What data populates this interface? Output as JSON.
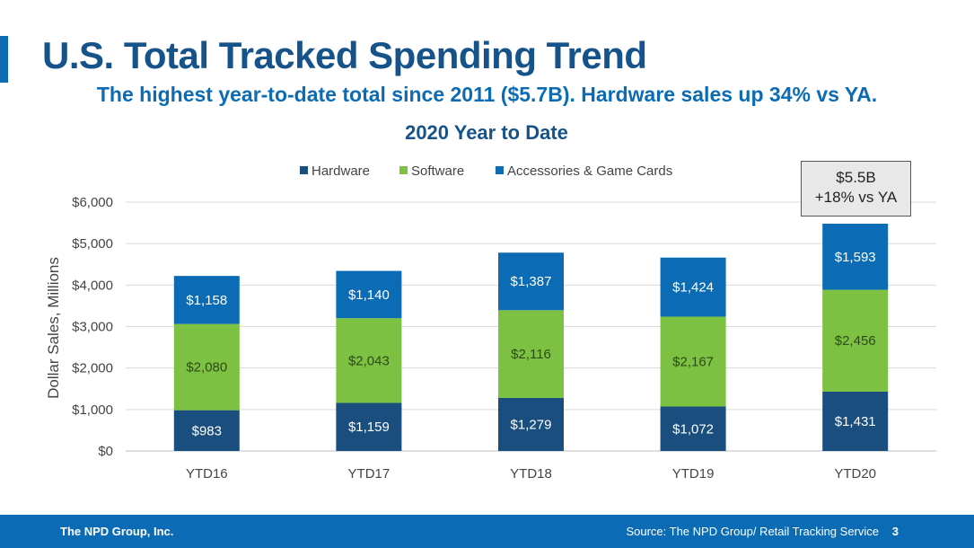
{
  "slide": {
    "title": "U.S. Total Tracked Spending Trend",
    "subtitle": "The highest year-to-date total since 2011 ($5.7B). Hardware sales up 34% vs YA.",
    "callout_line1": "$5.5B",
    "callout_line2": "+18% vs YA",
    "footer_company": "The NPD Group, Inc.",
    "footer_source": "Source: The NPD Group/ Retail Tracking Service",
    "page_number": "3"
  },
  "colors": {
    "hardware": "#1a4e7e",
    "software": "#7cc142",
    "accessories": "#0b6cb5",
    "footer": "#0b6cb5"
  },
  "chart_data": {
    "type": "bar",
    "stacked": true,
    "title": "2020 Year to Date",
    "xlabel": "",
    "ylabel": "Dollar Sales, Millions",
    "ylim": [
      0,
      6000
    ],
    "yticks": [
      0,
      1000,
      2000,
      3000,
      4000,
      5000,
      6000
    ],
    "ytick_labels": [
      "$0",
      "$1,000",
      "$2,000",
      "$3,000",
      "$4,000",
      "$5,000",
      "$6,000"
    ],
    "grid": true,
    "legend": "top",
    "categories": [
      "YTD16",
      "YTD17",
      "YTD18",
      "YTD19",
      "YTD20"
    ],
    "series": [
      {
        "name": "Hardware",
        "color": "#1a4e7e",
        "values": [
          983,
          1159,
          1279,
          1072,
          1431
        ],
        "labels": [
          "$983",
          "$1,159",
          "$1,279",
          "$1,072",
          "$1,431"
        ]
      },
      {
        "name": "Software",
        "color": "#7cc142",
        "values": [
          2080,
          2043,
          2116,
          2167,
          2456
        ],
        "labels": [
          "$2,080",
          "$2,043",
          "$2,116",
          "$2,167",
          "$2,456"
        ]
      },
      {
        "name": "Accessories & Game Cards",
        "color": "#0b6cb5",
        "values": [
          1158,
          1140,
          1387,
          1424,
          1593
        ],
        "labels": [
          "$1,158",
          "$1,140",
          "$1,387",
          "$1,424",
          "$1,593"
        ]
      }
    ]
  }
}
